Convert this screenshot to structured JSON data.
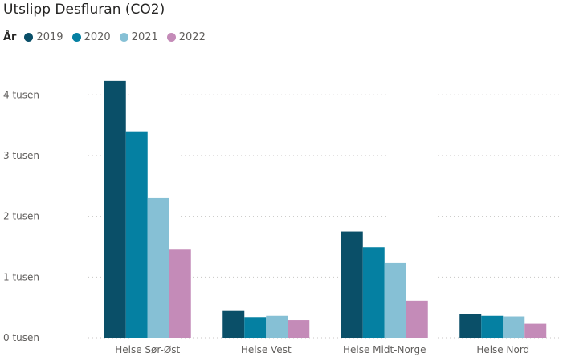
{
  "chart_data": {
    "type": "bar",
    "title": "Utslipp Desfluran (CO2)",
    "legend_title": "År",
    "legend_position": "top-left",
    "categories": [
      "Helse Sør-Øst",
      "Helse Vest",
      "Helse Midt-Norge",
      "Helse Nord"
    ],
    "series": [
      {
        "name": "2019",
        "color": "#0a4f68",
        "values": [
          4230,
          440,
          1750,
          390
        ]
      },
      {
        "name": "2020",
        "color": "#0580a2",
        "values": [
          3400,
          340,
          1490,
          360
        ]
      },
      {
        "name": "2021",
        "color": "#86c0d5",
        "values": [
          2300,
          360,
          1230,
          350
        ]
      },
      {
        "name": "2022",
        "color": "#c48bb8",
        "values": [
          1450,
          290,
          610,
          230
        ]
      }
    ],
    "yticks": [
      {
        "value": 0,
        "label": "0 tusen"
      },
      {
        "value": 1000,
        "label": "1 tusen"
      },
      {
        "value": 2000,
        "label": "2 tusen"
      },
      {
        "value": 3000,
        "label": "3 tusen"
      },
      {
        "value": 4000,
        "label": "4 tusen"
      }
    ],
    "ylim": [
      0,
      4400
    ],
    "xlabel": "",
    "ylabel": "",
    "grid": true,
    "grid_color": "#c8c6c4"
  }
}
